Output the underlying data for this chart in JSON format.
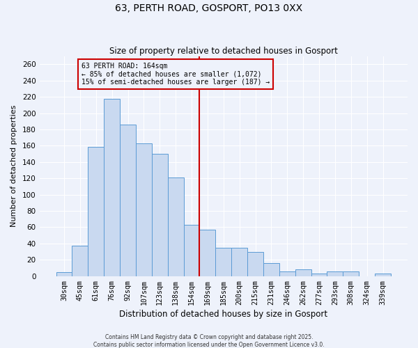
{
  "title": "63, PERTH ROAD, GOSPORT, PO13 0XX",
  "subtitle": "Size of property relative to detached houses in Gosport",
  "xlabel": "Distribution of detached houses by size in Gosport",
  "ylabel": "Number of detached properties",
  "bar_labels": [
    "30sqm",
    "45sqm",
    "61sqm",
    "76sqm",
    "92sqm",
    "107sqm",
    "123sqm",
    "138sqm",
    "154sqm",
    "169sqm",
    "185sqm",
    "200sqm",
    "215sqm",
    "231sqm",
    "246sqm",
    "262sqm",
    "277sqm",
    "293sqm",
    "308sqm",
    "324sqm",
    "339sqm"
  ],
  "bar_values": [
    5,
    37,
    159,
    218,
    186,
    163,
    150,
    121,
    63,
    57,
    35,
    35,
    30,
    16,
    6,
    8,
    3,
    6,
    6,
    0,
    3
  ],
  "bar_color": "#c9d9f0",
  "bar_edge_color": "#5b9bd5",
  "vline_x": 8.5,
  "vline_color": "#cc0000",
  "annotation_title": "63 PERTH ROAD: 164sqm",
  "annotation_line1": "← 85% of detached houses are smaller (1,072)",
  "annotation_line2": "15% of semi-detached houses are larger (187) →",
  "annotation_box_color": "#cc0000",
  "ylim": [
    0,
    270
  ],
  "yticks": [
    0,
    20,
    40,
    60,
    80,
    100,
    120,
    140,
    160,
    180,
    200,
    220,
    240,
    260
  ],
  "footer1": "Contains HM Land Registry data © Crown copyright and database right 2025.",
  "footer2": "Contains public sector information licensed under the Open Government Licence v3.0.",
  "bg_color": "#eef2fb",
  "grid_color": "#ffffff"
}
